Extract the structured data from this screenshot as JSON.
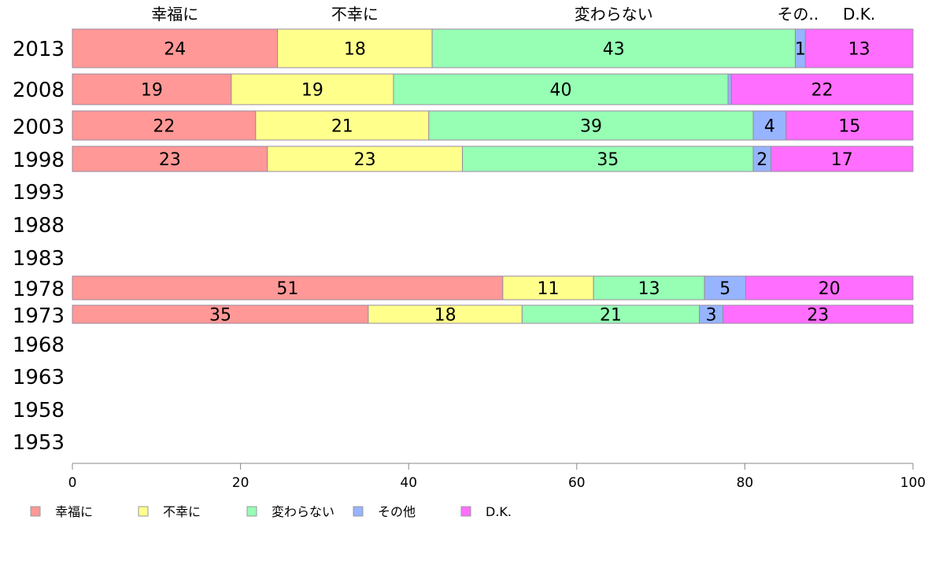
{
  "chart_data": {
    "type": "bar",
    "orientation": "horizontal",
    "stacked": true,
    "xlim": [
      0,
      100
    ],
    "x_ticks": [
      0,
      20,
      40,
      60,
      80,
      100
    ],
    "categories": [
      "2013",
      "2008",
      "2003",
      "1998",
      "1993",
      "1988",
      "1983",
      "1978",
      "1973",
      "1968",
      "1963",
      "1958",
      "1953"
    ],
    "top_labels": [
      "幸福に",
      "不幸に",
      "変わらない",
      "その..",
      "D.K."
    ],
    "legend_position": "bottom-left",
    "series": [
      {
        "name": "幸福に",
        "color": "#FF9896",
        "values": [
          24.4,
          18.9,
          21.8,
          23.2,
          null,
          null,
          null,
          51.2,
          35.2,
          null,
          null,
          null,
          null
        ]
      },
      {
        "name": "不幸に",
        "color": "#FFFF8C",
        "values": [
          18.4,
          19.3,
          20.6,
          23.2,
          null,
          null,
          null,
          10.8,
          18.3,
          null,
          null,
          null,
          null
        ]
      },
      {
        "name": "変わらない",
        "color": "#96FFB4",
        "values": [
          43.2,
          39.8,
          38.6,
          34.6,
          null,
          null,
          null,
          13.2,
          21.1,
          null,
          null,
          null,
          null
        ]
      },
      {
        "name": "その他",
        "color": "#96B4FF",
        "values": [
          1.2,
          0.4,
          3.9,
          2.1,
          null,
          null,
          null,
          4.9,
          2.8,
          null,
          null,
          null,
          null
        ]
      },
      {
        "name": "D.K.",
        "color": "#FF6EFF",
        "values": [
          12.8,
          21.6,
          15.1,
          16.9,
          null,
          null,
          null,
          19.9,
          22.6,
          null,
          null,
          null,
          null
        ]
      }
    ]
  }
}
